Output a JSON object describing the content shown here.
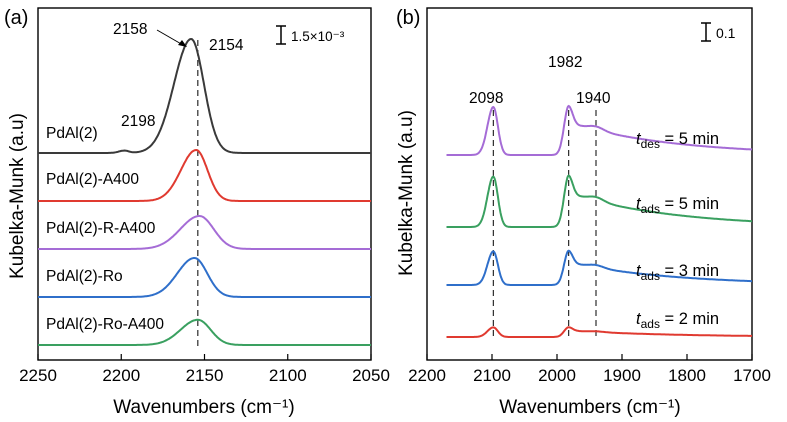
{
  "chart_data": [
    {
      "type": "line",
      "panel_label": "(a)",
      "xlabel": "Wavenumbers (cm⁻¹)",
      "ylabel": "Kubelka-Munk (a.u)",
      "xlim": [
        2250,
        2050
      ],
      "x_ticks": [
        2250,
        2200,
        2150,
        2100,
        2050
      ],
      "x_tick_labels": [
        "2250",
        "2200",
        "2150",
        "2100",
        "2050"
      ],
      "scale_bar_label": "1.5×10⁻³",
      "peak_labels": [
        "2158",
        "2154",
        "2198"
      ],
      "peak_positions": [
        2158,
        2154,
        2198
      ],
      "reference_lines": [
        2154
      ],
      "series": [
        {
          "name": "PdAl(2)",
          "color": "#3a3a3a",
          "baseline_offset": 4.0,
          "peaks": [
            [
              2158,
              1.9,
              9
            ],
            [
              2198,
              0.04,
              3
            ]
          ]
        },
        {
          "name": "PdAl(2)-A400",
          "color": "#e03a30",
          "baseline_offset": 3.0,
          "peaks": [
            [
              2155,
              0.85,
              8
            ]
          ]
        },
        {
          "name": "PdAl(2)-R-A400",
          "color": "#a56cd6",
          "baseline_offset": 2.0,
          "peaks": [
            [
              2153,
              0.55,
              10
            ]
          ]
        },
        {
          "name": "PdAl(2)-Ro",
          "color": "#2f6fca",
          "baseline_offset": 1.0,
          "peaks": [
            [
              2156,
              0.65,
              9
            ]
          ]
        },
        {
          "name": "PdAl(2)-Ro-A400",
          "color": "#3aa060",
          "baseline_offset": 0.0,
          "peaks": [
            [
              2154,
              0.42,
              9
            ]
          ]
        }
      ]
    },
    {
      "type": "line",
      "panel_label": "(b)",
      "xlabel": "Wavenumbers (cm⁻¹)",
      "ylabel": "Kubelka-Munk (a.u)",
      "xlim": [
        2200,
        1700
      ],
      "x_ticks": [
        2200,
        2100,
        2000,
        1900,
        1800,
        1700
      ],
      "x_tick_labels": [
        "2200",
        "2100",
        "2000",
        "1900",
        "1800",
        "1700"
      ],
      "scale_bar_label": "0.1",
      "peak_labels": [
        "2098",
        "1982",
        "1940"
      ],
      "peak_positions": [
        2098,
        1982,
        1940
      ],
      "reference_lines": [
        2098,
        1982,
        1940
      ],
      "series": [
        {
          "name": "t_des = 5 min",
          "label_var": "t",
          "label_sub": "des",
          "label_rest": " = 5 min",
          "color": "#a56cd6",
          "baseline_offset": 3.0,
          "amp": 1.0
        },
        {
          "name": "t_ads = 5 min",
          "label_var": "t",
          "label_sub": "ads",
          "label_rest": " = 5 min",
          "color": "#3aa060",
          "baseline_offset": 2.0,
          "amp": 1.05
        },
        {
          "name": "t_ads = 3 min",
          "label_var": "t",
          "label_sub": "ads",
          "label_rest": " = 3 min",
          "color": "#2f6fca",
          "baseline_offset": 1.0,
          "amp": 0.7
        },
        {
          "name": "t_ads = 2 min",
          "label_var": "t",
          "label_sub": "ads",
          "label_rest": " = 2 min",
          "color": "#e03a30",
          "baseline_offset": 0.0,
          "amp": 0.2
        }
      ]
    }
  ]
}
